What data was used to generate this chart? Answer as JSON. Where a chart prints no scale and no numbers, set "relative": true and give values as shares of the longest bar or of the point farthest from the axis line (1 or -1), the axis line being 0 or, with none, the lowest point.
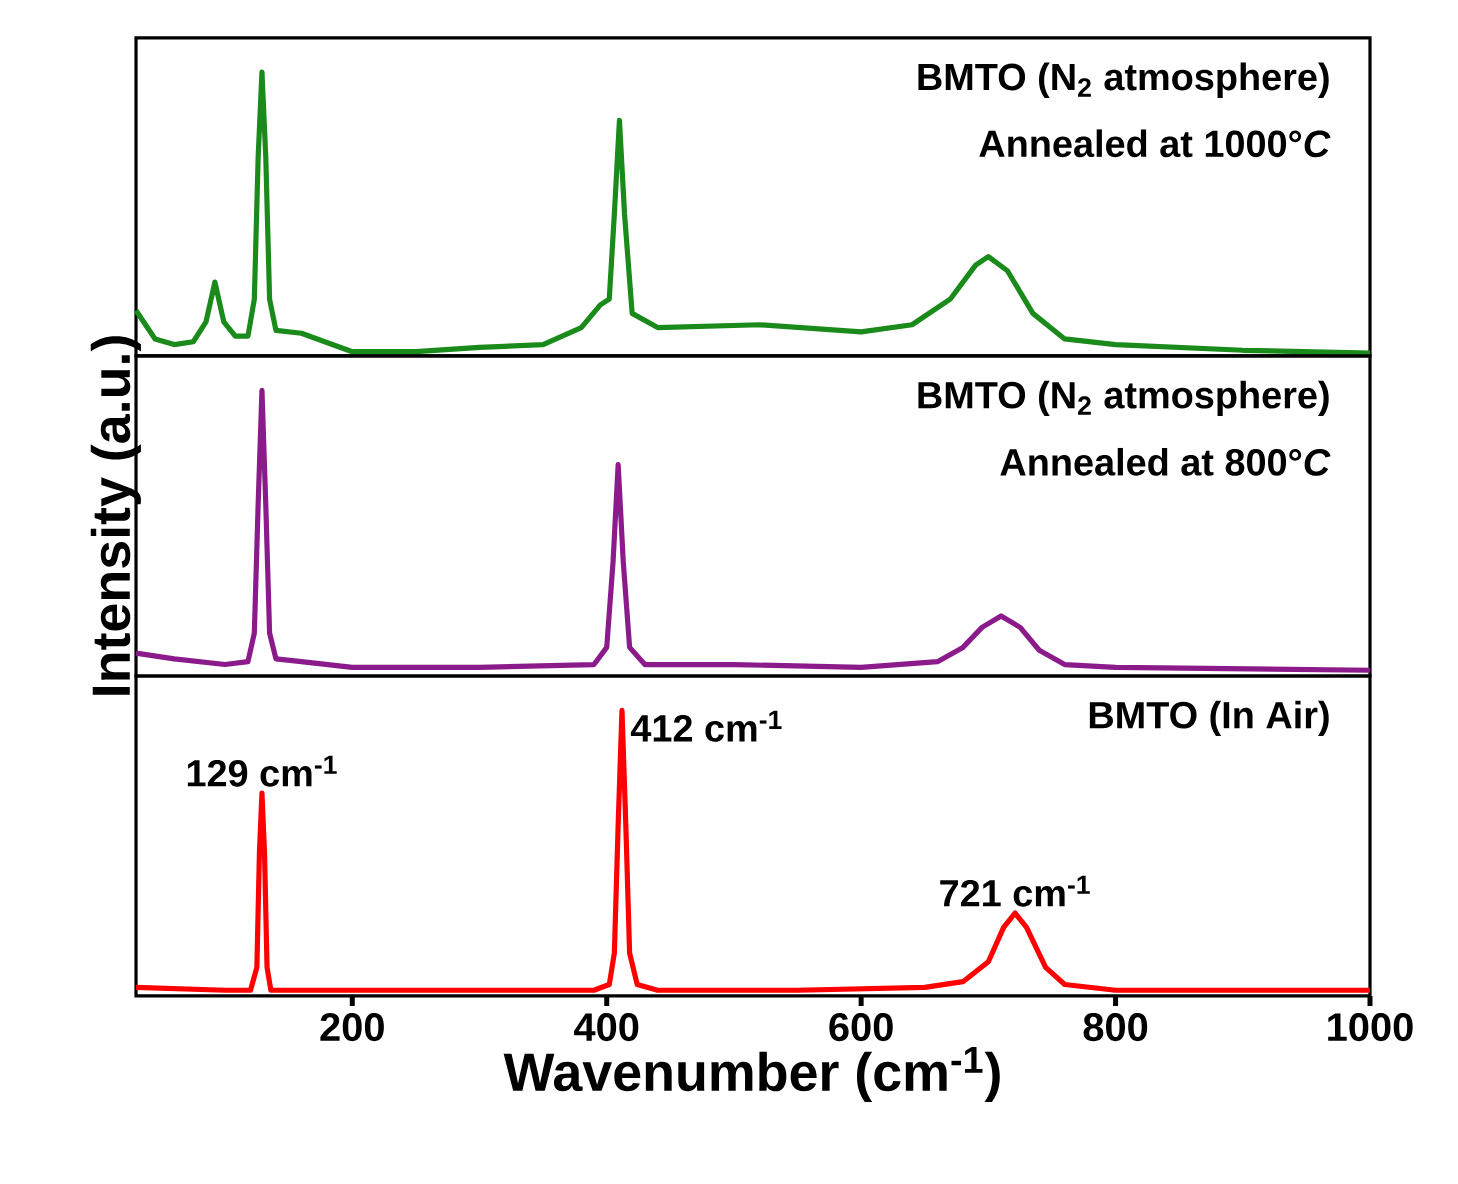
{
  "chart_data": [
    {
      "type": "line",
      "relative": true,
      "xlim": [
        30,
        1000
      ],
      "tick_labels": false,
      "color": "#1a8a1a",
      "line_style": "solid",
      "x": [
        30,
        45,
        60,
        75,
        85,
        92,
        99,
        108,
        118,
        123,
        126,
        129,
        132,
        135,
        140,
        160,
        200,
        250,
        300,
        350,
        380,
        395,
        402,
        406,
        410,
        414,
        420,
        440,
        520,
        600,
        640,
        670,
        690,
        700,
        715,
        735,
        760,
        800,
        900,
        1000
      ],
      "values": [
        0.16,
        0.06,
        0.04,
        0.05,
        0.12,
        0.26,
        0.12,
        0.07,
        0.07,
        0.2,
        0.7,
        1.0,
        0.7,
        0.2,
        0.09,
        0.08,
        0.015,
        0.015,
        0.03,
        0.04,
        0.1,
        0.18,
        0.2,
        0.5,
        0.83,
        0.5,
        0.15,
        0.1,
        0.11,
        0.085,
        0.11,
        0.2,
        0.32,
        0.35,
        0.3,
        0.15,
        0.06,
        0.04,
        0.02,
        0.01
      ],
      "annotations": [
        "BMTO (N$_{2}$ atmosphere)",
        "Annealed at 1000°*C*"
      ]
    },
    {
      "type": "line",
      "relative": true,
      "xlim": [
        30,
        1000
      ],
      "tick_labels": false,
      "color": "#8b1a8b",
      "line_style": "solid",
      "ylabel": "Intensity (a.u.)",
      "x": [
        30,
        60,
        100,
        118,
        123,
        126,
        129,
        132,
        135,
        140,
        160,
        200,
        300,
        390,
        400,
        405,
        409,
        413,
        418,
        430,
        500,
        600,
        660,
        680,
        695,
        710,
        725,
        740,
        760,
        800,
        1000
      ],
      "values": [
        0.08,
        0.06,
        0.04,
        0.05,
        0.15,
        0.6,
        1.0,
        0.6,
        0.15,
        0.06,
        0.05,
        0.03,
        0.03,
        0.04,
        0.1,
        0.4,
        0.74,
        0.4,
        0.1,
        0.04,
        0.04,
        0.03,
        0.05,
        0.1,
        0.17,
        0.21,
        0.17,
        0.09,
        0.04,
        0.03,
        0.02
      ],
      "annotations": [
        "BMTO (N$_{2}$ atmosphere)",
        "Annealed at 800°*C*"
      ]
    },
    {
      "type": "line",
      "relative": true,
      "xlim": [
        30,
        1000
      ],
      "xticks": [
        200,
        400,
        600,
        800,
        1000
      ],
      "tick_labels": "x",
      "color": "#ff0000",
      "line_style": "solid",
      "xlabel": "Wavenumber (cm$^{-1}$)",
      "x": [
        30,
        100,
        120,
        125,
        127,
        129,
        131,
        133,
        136,
        200,
        300,
        390,
        402,
        406,
        409,
        412,
        415,
        418,
        424,
        440,
        550,
        650,
        680,
        700,
        712,
        721,
        730,
        745,
        760,
        800,
        1000
      ],
      "values": [
        0.03,
        0.02,
        0.02,
        0.1,
        0.5,
        0.71,
        0.5,
        0.1,
        0.02,
        0.02,
        0.02,
        0.02,
        0.04,
        0.15,
        0.6,
        1.0,
        0.6,
        0.15,
        0.04,
        0.02,
        0.02,
        0.03,
        0.05,
        0.12,
        0.24,
        0.29,
        0.24,
        0.1,
        0.04,
        0.02,
        0.02
      ],
      "annotations": [
        "BMTO (In Air)",
        {
          "text": "129 cm$^{-1}$",
          "x": 129,
          "y": 0.71
        },
        {
          "text": "412 cm$^{-1}$",
          "x": 412,
          "y": 1.0
        },
        {
          "text": "721 cm$^{-1}$",
          "x": 721,
          "y": 0.29
        }
      ]
    }
  ]
}
